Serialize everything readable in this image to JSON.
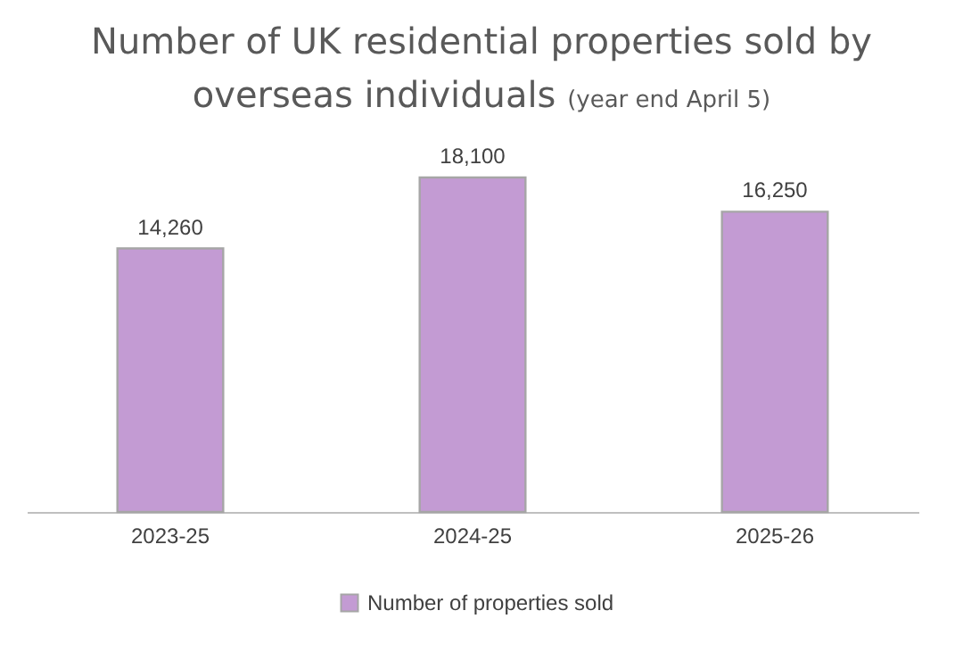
{
  "chart_data": {
    "type": "bar",
    "title": "Number of UK residential properties sold by overseas individuals",
    "subtitle": "(year end April 5)",
    "categories": [
      "2023-25",
      "2024-25",
      "2025-26"
    ],
    "series": [
      {
        "name": "Number of properties sold",
        "color": "#c39bd3",
        "values": [
          14260,
          18100,
          16250
        ],
        "value_labels": [
          "14,260",
          "18,100",
          "16,250"
        ]
      }
    ],
    "tick_labels": "x",
    "legend": "bottom"
  }
}
